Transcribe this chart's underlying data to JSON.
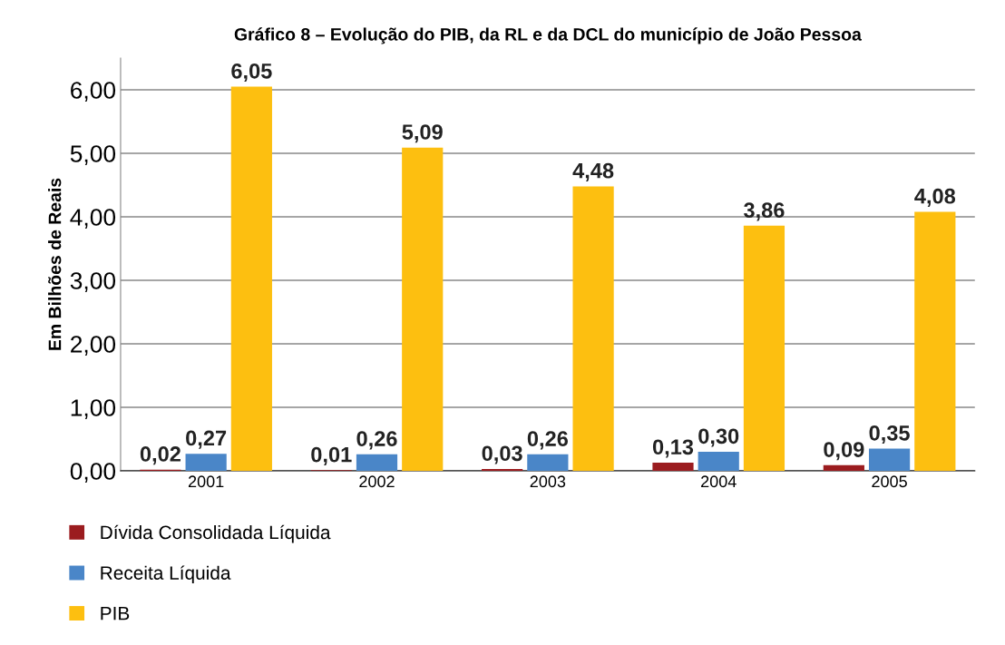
{
  "chart_data": {
    "type": "bar",
    "title": "Gráfico 8 – Evolução do PIB, da RL e da DCL do município de João Pessoa",
    "ylabel": "Em Bilhões de Reais",
    "categories": [
      "2001",
      "2002",
      "2003",
      "2004",
      "2005"
    ],
    "series": [
      {
        "name": "Dívida Consolidada Líquida",
        "color": "#9b1c1f",
        "values": [
          0.02,
          0.01,
          0.03,
          0.13,
          0.09
        ],
        "value_labels": [
          "0,02",
          "0,01",
          "0,03",
          "0,13",
          "0,09"
        ]
      },
      {
        "name": "Receita Líquida",
        "color": "#4a86c8",
        "values": [
          0.27,
          0.26,
          0.26,
          0.3,
          0.35
        ],
        "value_labels": [
          "0,27",
          "0,26",
          "0,26",
          "0,30",
          "0,35"
        ]
      },
      {
        "name": "PIB",
        "color": "#fdbf10",
        "values": [
          6.05,
          5.09,
          4.48,
          3.86,
          4.08
        ],
        "value_labels": [
          "6,05",
          "5,09",
          "4,48",
          "3,86",
          "4,08"
        ]
      }
    ],
    "ylim": [
      0,
      6.5
    ],
    "yticks": [
      {
        "value": 0,
        "label": "0,00"
      },
      {
        "value": 1,
        "label": "1,00"
      },
      {
        "value": 2,
        "label": "2,00"
      },
      {
        "value": 3,
        "label": "3,00"
      },
      {
        "value": 4,
        "label": "4,00"
      },
      {
        "value": 5,
        "label": "5,00"
      },
      {
        "value": 6,
        "label": "6,00"
      }
    ],
    "grid": "y",
    "legend": "bottom left"
  }
}
